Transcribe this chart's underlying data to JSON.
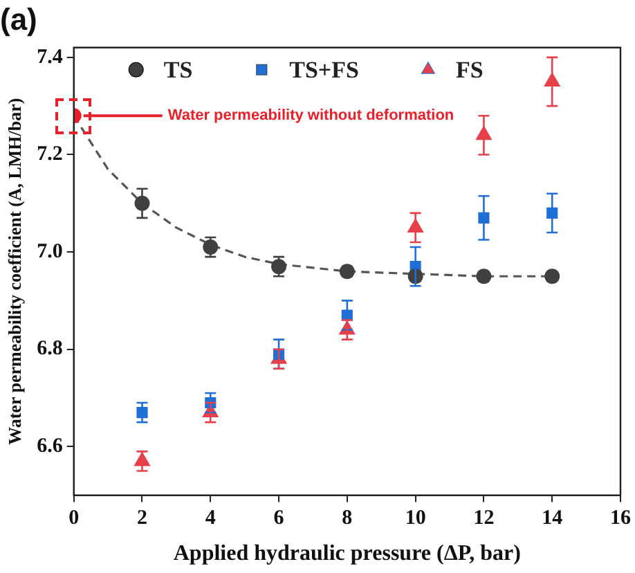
{
  "chart_data": {
    "type": "scatter",
    "title": "(a)",
    "xlabel": "Applied hydraulic pressure (ΔP, bar)",
    "ylabel": "Water permeability coefficient (A, LMH/bar)",
    "xlim": [
      0,
      16
    ],
    "xticks": [
      0,
      2,
      4,
      6,
      8,
      10,
      12,
      14,
      16
    ],
    "ylim": [
      6.5,
      7.42
    ],
    "yticks": [
      6.6,
      6.8,
      {
        "value": 7,
        "label": "7.0"
      },
      7.2,
      7.4
    ],
    "grid": false,
    "legend": "top",
    "series": [
      {
        "name": "TS",
        "color": "#404040",
        "marker": "circle",
        "x": [
          2,
          4,
          6,
          8,
          10,
          12,
          14
        ],
        "values": [
          7.1,
          7.01,
          6.97,
          6.96,
          6.95,
          6.95,
          6.95
        ],
        "errors": [
          0.03,
          0.02,
          0.02,
          0.01,
          0.01,
          0.01,
          0.01
        ]
      },
      {
        "name": "TS+FS",
        "color": "#1f6fd6",
        "marker": "square",
        "x": [
          2,
          4,
          6,
          8,
          10,
          12,
          14
        ],
        "values": [
          6.67,
          6.69,
          6.79,
          6.87,
          6.97,
          7.07,
          7.08
        ],
        "errors": [
          0.02,
          0.02,
          0.03,
          0.03,
          0.04,
          0.045,
          0.04
        ]
      },
      {
        "name": "FS",
        "color": "#e8404a",
        "marker": "triangle",
        "x": [
          2,
          4,
          6,
          8,
          10,
          12,
          14
        ],
        "values": [
          6.57,
          6.67,
          6.78,
          6.84,
          7.05,
          7.24,
          7.35
        ],
        "errors": [
          0.02,
          0.02,
          0.02,
          0.02,
          0.03,
          0.04,
          0.05
        ]
      },
      {
        "color": "#e8202a",
        "marker": "circle",
        "x": [
          0
        ],
        "values": [
          7.28
        ]
      },
      {
        "type": "line",
        "color": "#555555",
        "marker": "none",
        "line_style": "dashed",
        "x": [
          0,
          1,
          2,
          3,
          4,
          5,
          6,
          8,
          10,
          12,
          14
        ],
        "values": [
          7.28,
          7.17,
          7.1,
          7.05,
          7.015,
          6.99,
          6.975,
          6.96,
          6.955,
          6.95,
          6.95
        ]
      }
    ],
    "annotations": [
      {
        "text": "Water permeability without deformation",
        "x": 0,
        "y": 7.28
      }
    ]
  }
}
